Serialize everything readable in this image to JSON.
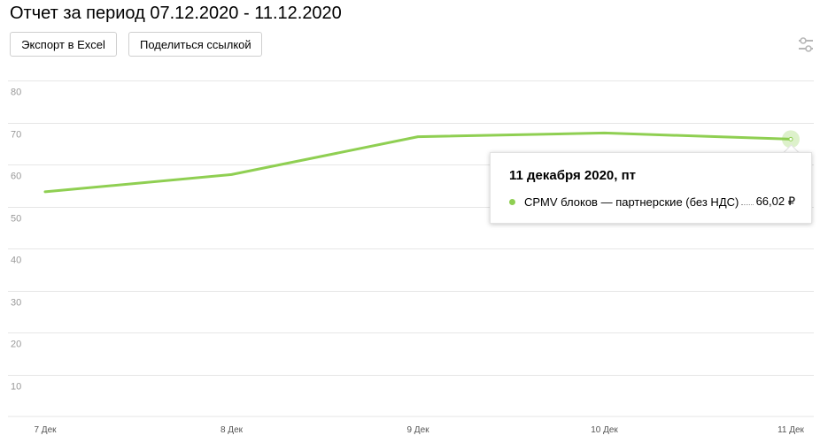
{
  "header": {
    "title": "Отчет за период 07.12.2020 - 11.12.2020",
    "export_label": "Экспорт в Excel",
    "share_label": "Поделиться ссылкой"
  },
  "icons": {
    "settings": "sliders-icon"
  },
  "chart_data": {
    "type": "line",
    "x": [
      "7 Дек",
      "8 Дек",
      "9 Дек",
      "10 Дек",
      "11 Дек"
    ],
    "series": [
      {
        "name": "CPMV блоков — партнерские (без НДС)",
        "values": [
          53.5,
          57.6,
          66.6,
          67.5,
          66.02
        ],
        "color": "#8fcf52"
      }
    ],
    "yticks": [
      10,
      20,
      30,
      40,
      50,
      60,
      70,
      80
    ],
    "ylim": [
      0,
      80
    ],
    "grid": true
  },
  "tooltip": {
    "date": "11 декабря 2020, пт",
    "series_name": "CPMV блоков — партнерские (без НДС)",
    "value": "66,02 ₽"
  }
}
